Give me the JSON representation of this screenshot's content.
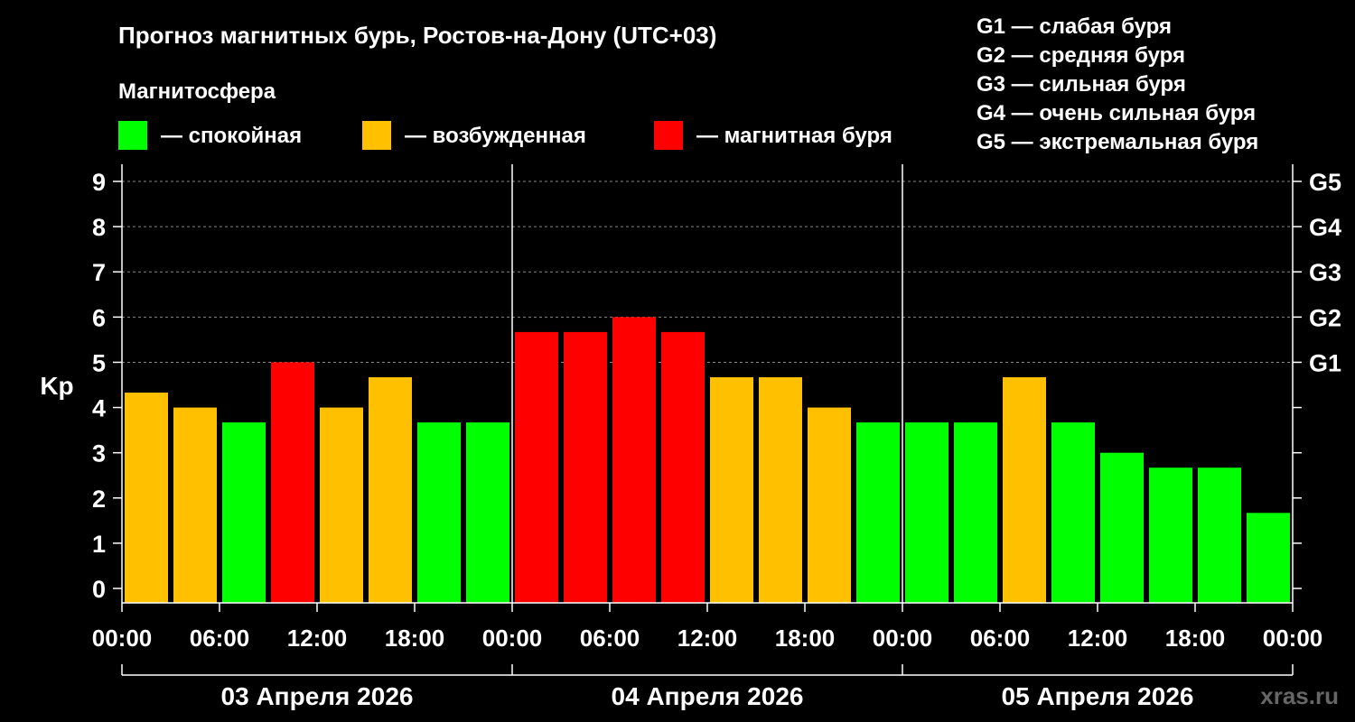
{
  "chart_data": {
    "type": "bar",
    "title": "Прогноз магнитных бурь, Ростов-на-Дону (UTC+03)",
    "legend": {
      "heading": "Магнитосфера",
      "items": [
        {
          "label": "— спокойная",
          "color": "#00ff00"
        },
        {
          "label": "— возбужденная",
          "color": "#ffc000"
        },
        {
          "label": "— магнитная буря",
          "color": "#ff0000"
        }
      ]
    },
    "storm_scale": [
      "G1 — слабая буря",
      "G2 — средняя буря",
      "G3 — сильная буря",
      "G4 — очень сильная буря",
      "G5 — экстремальная буря"
    ],
    "ylabel": "Kp",
    "ylim": [
      0,
      9
    ],
    "yticks": [
      "0",
      "1",
      "2",
      "3",
      "4",
      "5",
      "6",
      "7",
      "8",
      "9"
    ],
    "right_ticks": [
      {
        "label": "G1",
        "kp": 5
      },
      {
        "label": "G2",
        "kp": 6
      },
      {
        "label": "G3",
        "kp": 7
      },
      {
        "label": "G4",
        "kp": 8
      },
      {
        "label": "G5",
        "kp": 9
      }
    ],
    "xtick_labels": [
      "00:00",
      "06:00",
      "12:00",
      "18:00",
      "00:00",
      "06:00",
      "12:00",
      "18:00",
      "00:00",
      "06:00",
      "12:00",
      "18:00",
      "00:00"
    ],
    "days": [
      "03 Апреля 2026",
      "04 Апреля 2026",
      "05 Апреля 2026"
    ],
    "colors": {
      "quiet": "#00ff00",
      "active": "#ffc000",
      "storm": "#ff0000",
      "grid": "#888888",
      "axis": "#ffffff"
    },
    "values": [
      4.33,
      4.0,
      3.67,
      5.0,
      4.0,
      4.67,
      3.67,
      3.67,
      5.67,
      5.67,
      6.0,
      5.67,
      4.67,
      4.67,
      4.0,
      3.67,
      3.67,
      3.67,
      4.67,
      3.67,
      3.0,
      2.67,
      2.67,
      1.67
    ],
    "levels": [
      "active",
      "active",
      "quiet",
      "storm",
      "active",
      "active",
      "quiet",
      "quiet",
      "storm",
      "storm",
      "storm",
      "storm",
      "active",
      "active",
      "active",
      "quiet",
      "quiet",
      "quiet",
      "active",
      "quiet",
      "quiet",
      "quiet",
      "quiet",
      "quiet"
    ],
    "grid": true
  },
  "watermark": "xras.ru"
}
